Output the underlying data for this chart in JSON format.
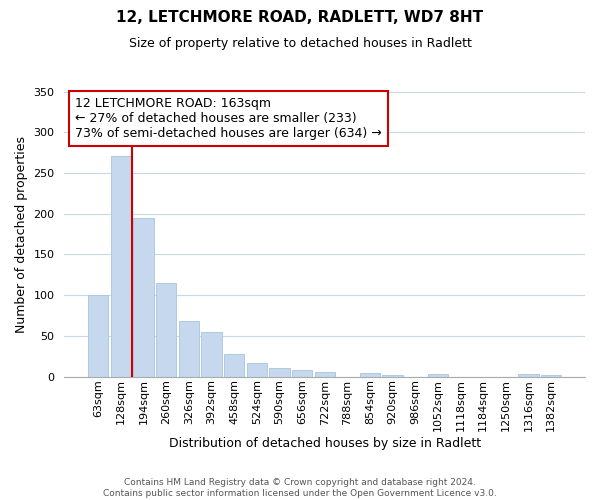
{
  "title": "12, LETCHMORE ROAD, RADLETT, WD7 8HT",
  "subtitle": "Size of property relative to detached houses in Radlett",
  "xlabel": "Distribution of detached houses by size in Radlett",
  "ylabel": "Number of detached properties",
  "bar_labels": [
    "63sqm",
    "128sqm",
    "194sqm",
    "260sqm",
    "326sqm",
    "392sqm",
    "458sqm",
    "524sqm",
    "590sqm",
    "656sqm",
    "722sqm",
    "788sqm",
    "854sqm",
    "920sqm",
    "986sqm",
    "1052sqm",
    "1118sqm",
    "1184sqm",
    "1250sqm",
    "1316sqm",
    "1382sqm"
  ],
  "bar_values": [
    100,
    271,
    195,
    115,
    68,
    55,
    28,
    17,
    11,
    8,
    6,
    0,
    4,
    2,
    0,
    3,
    0,
    0,
    0,
    3,
    2
  ],
  "bar_color": "#c5d8ed",
  "bar_edge_color": "#aac4de",
  "vline_x": 1.5,
  "vline_color": "#cc0000",
  "ylim": [
    0,
    350
  ],
  "yticks": [
    0,
    50,
    100,
    150,
    200,
    250,
    300,
    350
  ],
  "annotation_title": "12 LETCHMORE ROAD: 163sqm",
  "annotation_line1": "← 27% of detached houses are smaller (233)",
  "annotation_line2": "73% of semi-detached houses are larger (634) →",
  "annotation_box_color": "white",
  "annotation_box_edgecolor": "#cc0000",
  "footer1": "Contains HM Land Registry data © Crown copyright and database right 2024.",
  "footer2": "Contains public sector information licensed under the Open Government Licence v3.0.",
  "background_color": "white",
  "grid_color": "#c8d8e8",
  "title_fontsize": 11,
  "subtitle_fontsize": 9,
  "ylabel_fontsize": 9,
  "xlabel_fontsize": 9,
  "annot_fontsize": 9,
  "tick_fontsize": 8
}
